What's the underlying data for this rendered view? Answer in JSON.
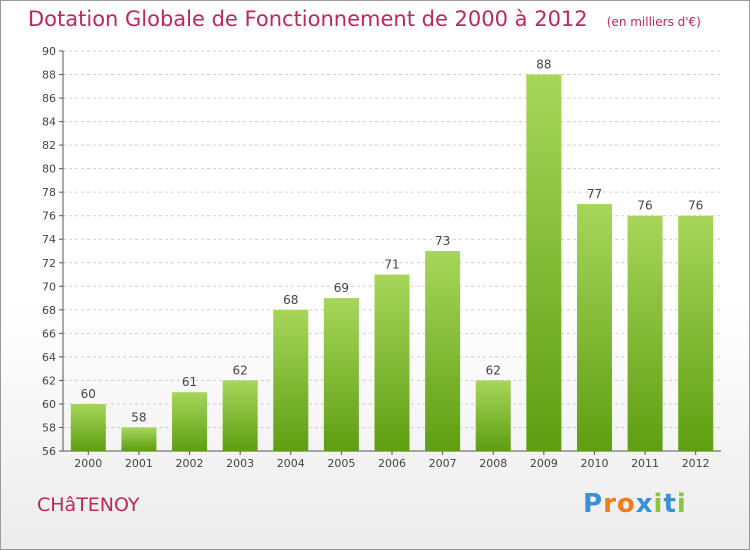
{
  "title": "Dotation Globale de Fonctionnement de 2000 à 2012",
  "subtitle": "(en milliers d'€)",
  "town": "CHâTENOY",
  "brand": {
    "letters": [
      "P",
      "r",
      "o",
      "x",
      "i",
      "t",
      "i"
    ],
    "colors": [
      "#3a8fd9",
      "#f07d1a",
      "#f07d1a",
      "#3a8fd9",
      "#8cc63f",
      "#3a8fd9",
      "#8cc63f"
    ]
  },
  "colors": {
    "title": "#c0265b",
    "bar_top": "#a7d65a",
    "bar_bottom": "#5e9e12",
    "grid": "#cfcfcf"
  },
  "chart_data": {
    "type": "bar",
    "title": "Dotation Globale de Fonctionnement de 2000 à 2012",
    "subtitle": "(en milliers d'€)",
    "categories": [
      "2000",
      "2001",
      "2002",
      "2003",
      "2004",
      "2005",
      "2006",
      "2007",
      "2008",
      "2009",
      "2010",
      "2011",
      "2012"
    ],
    "values": [
      60,
      58,
      61,
      62,
      68,
      69,
      71,
      73,
      62,
      88,
      77,
      76,
      76
    ],
    "ylim": [
      56,
      90
    ],
    "yticks": [
      56,
      58,
      60,
      62,
      64,
      66,
      68,
      70,
      72,
      74,
      76,
      78,
      80,
      82,
      84,
      86,
      88,
      90
    ],
    "grid": true,
    "xlabel": "",
    "ylabel": ""
  }
}
